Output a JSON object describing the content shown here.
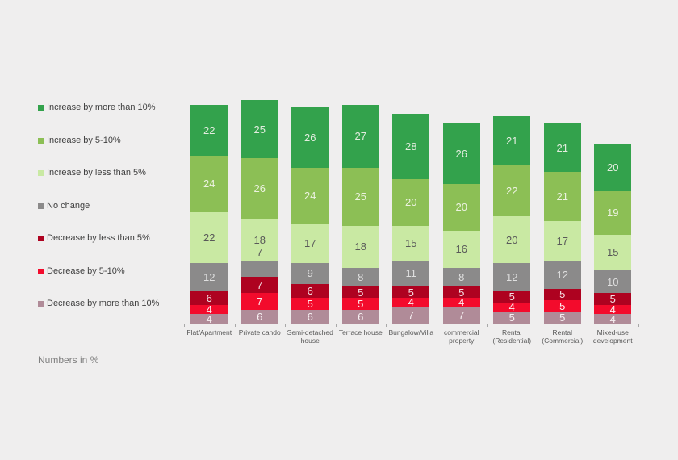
{
  "background_color": "#efeeee",
  "axis_color": "#a8a8a8",
  "footnote": "Numbers in %",
  "legend": {
    "position": "left",
    "items": [
      {
        "label": "Increase by more than 10%",
        "color": "#33a24c"
      },
      {
        "label": "Increase by 5-10%",
        "color": "#8cbf55"
      },
      {
        "label": "Increase by less than 5%",
        "color": "#c9e9a3"
      },
      {
        "label": "No change",
        "color": "#8b8a8a"
      },
      {
        "label": "Decrease by less than 5%",
        "color": "#ae0220"
      },
      {
        "label": "Decrease by 5-10%",
        "color": "#f30b2c"
      },
      {
        "label": "Decrease by more than 10%",
        "color": "#b08b98"
      }
    ]
  },
  "chart_data": {
    "type": "bar",
    "stacked": true,
    "orientation": "vertical",
    "units": "percent",
    "title": "",
    "xlabel": "",
    "ylabel": "",
    "grid": false,
    "value_labels": true,
    "legend_position": "left",
    "categories": [
      "Flat/Apartment",
      "Private cando",
      "Semi-detached house",
      "Terrace house",
      "Bungalow/Villa",
      "commercial property",
      "Rental (Residential)",
      "Rental (Commercial)",
      "Mixed-use development"
    ],
    "series": [
      {
        "name": "Increase by more than 10%",
        "color": "#33a24c",
        "label_color": "#e3ecdf",
        "values": [
          22,
          25,
          26,
          27,
          28,
          26,
          21,
          21,
          20
        ]
      },
      {
        "name": "Increase by 5-10%",
        "color": "#8cbf55",
        "label_color": "#ecf2e0",
        "values": [
          24,
          26,
          24,
          25,
          20,
          20,
          22,
          21,
          19
        ]
      },
      {
        "name": "Increase by less than 5%",
        "color": "#c9e9a3",
        "label_color": "#595959",
        "values": [
          22,
          18,
          17,
          18,
          15,
          16,
          20,
          17,
          15
        ]
      },
      {
        "name": "No change",
        "color": "#8b8a8a",
        "label_color": "#dfdfdf",
        "values": [
          12,
          7,
          9,
          8,
          11,
          8,
          12,
          12,
          10
        ]
      },
      {
        "name": "Decrease by less than 5%",
        "color": "#ae0220",
        "label_color": "#f3dee2",
        "values": [
          6,
          7,
          6,
          5,
          5,
          5,
          5,
          5,
          5
        ]
      },
      {
        "name": "Decrease by 5-10%",
        "color": "#f30b2c",
        "label_color": "#fdeef0",
        "values": [
          4,
          7,
          5,
          5,
          4,
          4,
          4,
          5,
          4
        ]
      },
      {
        "name": "Decrease by more than 10%",
        "color": "#b08b98",
        "label_color": "#f7f0f2",
        "values": [
          4,
          6,
          6,
          6,
          7,
          7,
          5,
          5,
          4
        ]
      }
    ],
    "label_outside": [
      {
        "category": "Private cando",
        "series": "No change"
      }
    ]
  }
}
